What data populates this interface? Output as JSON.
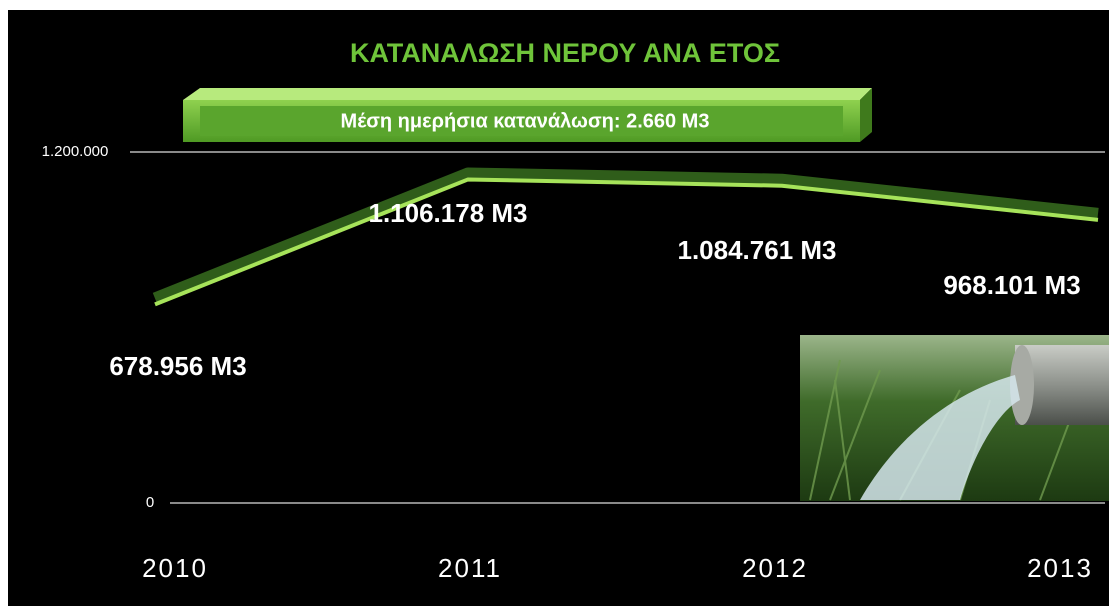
{
  "chart_data": {
    "type": "line",
    "title": "ΚΑΤΑΝΑΛΩΣΗ ΝΕΡΟΥ ΑΝΑ ΕΤΟΣ",
    "subtitle": "Μέση ημερήσια κατανάλωση: 2.660 Μ3",
    "categories": [
      "2010",
      "2011",
      "2012",
      "2013"
    ],
    "values": [
      678956,
      1106178,
      1084761,
      968101
    ],
    "value_labels": [
      "678.956 Μ3",
      "1.106.178 Μ3",
      "1.084.761 Μ3",
      "968.101 Μ3"
    ],
    "color": "#a6e35a",
    "ylim": [
      0,
      1200000
    ],
    "yticks": [
      {
        "value": 0,
        "label": "0"
      },
      {
        "value": 1200000,
        "label": "1.200.000"
      }
    ],
    "grid": true
  }
}
